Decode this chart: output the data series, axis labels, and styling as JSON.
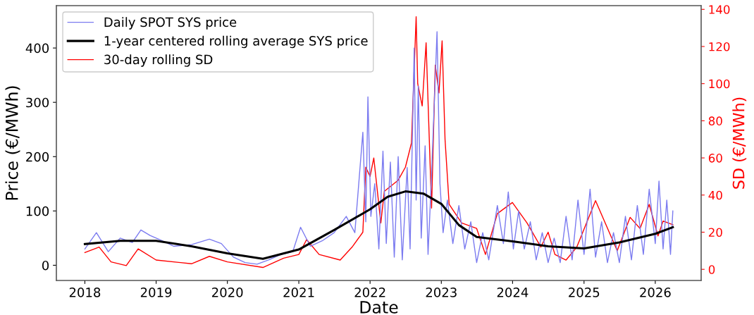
{
  "chart_data": {
    "type": "line",
    "xlabel": "Date",
    "ylabel": "Price (€/MWh)",
    "y2label": "SD (€/MWh)",
    "xlim": [
      "2017-08-08",
      "2026-08-24"
    ],
    "xticks": [
      {
        "value": "2018-01-01",
        "label": "2018"
      },
      {
        "value": "2019-01-01",
        "label": "2019"
      },
      {
        "value": "2020-01-01",
        "label": "2020"
      },
      {
        "value": "2021-01-01",
        "label": "2021"
      },
      {
        "value": "2022-01-01",
        "label": "2022"
      },
      {
        "value": "2023-01-01",
        "label": "2023"
      },
      {
        "value": "2024-01-01",
        "label": "2024"
      },
      {
        "value": "2025-01-01",
        "label": "2025"
      },
      {
        "value": "2026-01-01",
        "label": "2026"
      }
    ],
    "ylim": [
      -28,
      478
    ],
    "yticks": [
      0,
      100,
      200,
      300,
      400
    ],
    "y2lim": [
      -6,
      142
    ],
    "y2ticks": [
      0,
      20,
      40,
      60,
      80,
      100,
      120,
      140
    ],
    "grid": false,
    "legend": "top left",
    "series": [
      {
        "name": "Daily SPOT SYS price",
        "color": "#7b7bf0",
        "x": [
          "2018-01-01",
          "2018-03-01",
          "2018-05-01",
          "2018-07-01",
          "2018-09-01",
          "2018-10-15",
          "2018-12-01",
          "2019-02-01",
          "2019-04-01",
          "2019-07-01",
          "2019-10-01",
          "2019-12-01",
          "2020-02-01",
          "2020-04-01",
          "2020-06-01",
          "2020-08-01",
          "2020-10-01",
          "2020-12-01",
          "2021-01-10",
          "2021-03-01",
          "2021-05-01",
          "2021-07-01",
          "2021-09-01",
          "2021-10-15",
          "2021-11-25",
          "2021-12-10",
          "2021-12-21",
          "2022-01-05",
          "2022-01-25",
          "2022-02-15",
          "2022-03-08",
          "2022-03-25",
          "2022-04-15",
          "2022-05-05",
          "2022-05-25",
          "2022-06-15",
          "2022-07-10",
          "2022-07-25",
          "2022-08-15",
          "2022-08-25",
          "2022-09-05",
          "2022-09-20",
          "2022-10-10",
          "2022-10-25",
          "2022-11-10",
          "2022-12-10",
          "2022-12-25",
          "2023-01-10",
          "2023-02-01",
          "2023-03-01",
          "2023-04-01",
          "2023-05-01",
          "2023-06-01",
          "2023-07-01",
          "2023-08-01",
          "2023-09-01",
          "2023-10-15",
          "2023-11-15",
          "2023-12-10",
          "2024-01-05",
          "2024-02-01",
          "2024-03-01",
          "2024-04-01",
          "2024-05-01",
          "2024-06-01",
          "2024-07-01",
          "2024-08-01",
          "2024-09-01",
          "2024-10-01",
          "2024-11-01",
          "2024-12-01",
          "2025-01-01",
          "2025-02-01",
          "2025-03-01",
          "2025-04-01",
          "2025-05-01",
          "2025-06-01",
          "2025-07-01",
          "2025-08-01",
          "2025-09-01",
          "2025-10-01",
          "2025-11-01",
          "2025-12-01",
          "2026-01-01",
          "2026-01-20",
          "2026-02-10",
          "2026-03-01",
          "2026-03-20",
          "2026-04-01"
        ],
        "values": [
          30,
          60,
          25,
          50,
          42,
          65,
          55,
          45,
          35,
          38,
          48,
          40,
          15,
          5,
          2,
          10,
          20,
          25,
          70,
          35,
          45,
          60,
          90,
          60,
          245,
          80,
          310,
          90,
          150,
          30,
          210,
          40,
          190,
          15,
          200,
          10,
          180,
          30,
          400,
          120,
          330,
          50,
          220,
          20,
          150,
          430,
          150,
          60,
          120,
          40,
          110,
          30,
          80,
          5,
          60,
          10,
          110,
          40,
          135,
          30,
          100,
          30,
          80,
          10,
          60,
          5,
          50,
          5,
          90,
          10,
          120,
          20,
          140,
          15,
          80,
          5,
          60,
          5,
          90,
          10,
          110,
          20,
          140,
          40,
          155,
          30,
          120,
          20,
          100
        ]
      },
      {
        "name": "1-year centered rolling average SYS price",
        "color": "#000000",
        "x": [
          "2018-01-01",
          "2018-07-01",
          "2019-01-01",
          "2019-07-01",
          "2020-01-01",
          "2020-07-01",
          "2021-01-01",
          "2021-07-01",
          "2022-01-01",
          "2022-04-01",
          "2022-07-01",
          "2022-10-01",
          "2023-01-01",
          "2023-04-01",
          "2023-07-01",
          "2024-01-01",
          "2024-07-01",
          "2025-01-01",
          "2025-07-01",
          "2026-01-01",
          "2026-04-01"
        ],
        "values": [
          39,
          45,
          45,
          35,
          22,
          12,
          29,
          65,
          103,
          126,
          136,
          132,
          113,
          74,
          52,
          44,
          35,
          31,
          42,
          58,
          70
        ]
      },
      {
        "name": "30-day rolling SD",
        "color": "#ff0000",
        "axis": "y2",
        "x": [
          "2018-01-01",
          "2018-03-15",
          "2018-05-15",
          "2018-08-01",
          "2018-10-01",
          "2019-01-01",
          "2019-07-01",
          "2019-10-01",
          "2020-01-01",
          "2020-07-01",
          "2020-10-15",
          "2021-01-01",
          "2021-02-10",
          "2021-04-15",
          "2021-08-01",
          "2021-10-01",
          "2021-11-25",
          "2021-12-10",
          "2022-01-01",
          "2022-01-20",
          "2022-02-25",
          "2022-03-15",
          "2022-05-25",
          "2022-07-01",
          "2022-08-01",
          "2022-08-25",
          "2022-09-02",
          "2022-09-25",
          "2022-10-15",
          "2022-11-12",
          "2022-12-01",
          "2022-12-20",
          "2023-01-05",
          "2023-01-20",
          "2023-02-10",
          "2023-04-15",
          "2023-07-01",
          "2023-08-15",
          "2023-10-15",
          "2023-12-31",
          "2024-03-15",
          "2024-05-25",
          "2024-07-01",
          "2024-08-05",
          "2024-10-01",
          "2024-11-25",
          "2025-03-01",
          "2025-05-10",
          "2025-06-20",
          "2025-08-25",
          "2025-10-15",
          "2025-12-01",
          "2026-01-15",
          "2026-02-10",
          "2026-04-01"
        ],
        "values": [
          9,
          12,
          4,
          2,
          11,
          5,
          3,
          7,
          4,
          1,
          6,
          8,
          16,
          8,
          5,
          12,
          20,
          55,
          50,
          60,
          25,
          42,
          48,
          55,
          68,
          136,
          100,
          88,
          122,
          33,
          110,
          95,
          123,
          70,
          35,
          25,
          22,
          8,
          30,
          36,
          25,
          12,
          20,
          8,
          5,
          12,
          37,
          20,
          10,
          28,
          22,
          35,
          18,
          26,
          24
        ]
      }
    ]
  }
}
